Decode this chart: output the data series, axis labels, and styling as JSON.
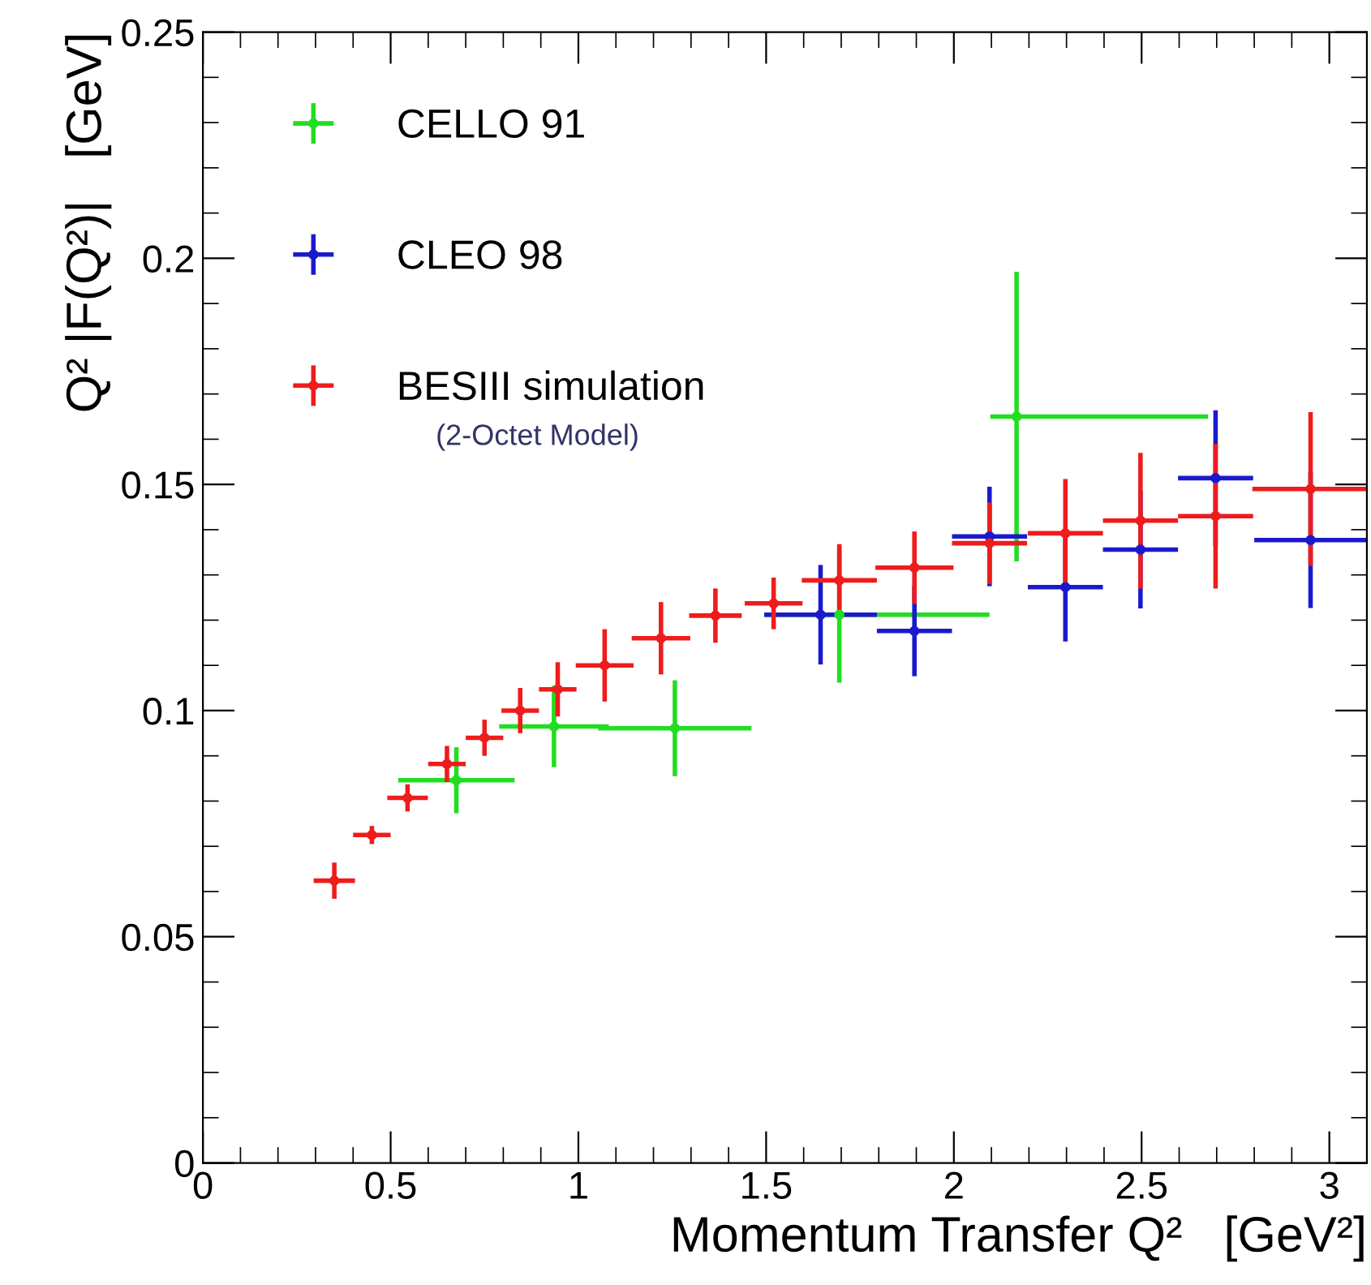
{
  "chart_data": {
    "type": "scatter",
    "xlabel": "Momentum Transfer Q²   [GeV²]",
    "ylabel": "Q² |F(Q²)|   [GeV]",
    "xlim": [
      0,
      3.1
    ],
    "ylim": [
      0,
      0.25
    ],
    "xticks": [
      0,
      0.5,
      1,
      1.5,
      2,
      2.5,
      3
    ],
    "yticks": [
      0,
      0.05,
      0.1,
      0.15,
      0.2,
      0.25
    ],
    "marker": "circle",
    "grid": false,
    "legend": "top left",
    "annotations": [
      "(2-Octet Model)"
    ],
    "series": [
      {
        "name": "CELLO 91",
        "color": "#22dd22",
        "x": [
          0.675,
          0.935,
          1.257,
          1.695,
          2.167
        ],
        "values": [
          0.0846,
          0.0965,
          0.0961,
          0.1212,
          0.165
        ],
        "errors": [
          0.0073,
          0.009,
          0.0106,
          0.015,
          0.032
        ],
        "xerrors": [
          0.155,
          0.146,
          0.204,
          [
            1.495,
            2.095
          ],
          [
            2.097,
            2.677
          ]
        ]
      },
      {
        "name": "CLEO 98",
        "color": "#1a1acc",
        "x": [
          1.645,
          1.895,
          2.095,
          2.297,
          2.497,
          2.697,
          2.95
        ],
        "values": [
          0.1212,
          0.1176,
          0.1385,
          0.1273,
          0.1356,
          0.1514,
          0.1377
        ],
        "errors": [
          0.011,
          0.01,
          0.011,
          0.012,
          0.013,
          0.015,
          0.015
        ],
        "xerrors": [
          0.15,
          0.1,
          0.1,
          0.1,
          0.1,
          0.1,
          0.15
        ]
      },
      {
        "name": "BESIII simulation",
        "color": "#ee1c1c",
        "x": [
          0.35,
          0.45,
          0.545,
          0.65,
          0.75,
          0.845,
          0.945,
          1.07,
          1.22,
          1.365,
          1.52,
          1.695,
          1.895,
          2.095,
          2.297,
          2.497,
          2.697,
          2.95
        ],
        "values": [
          0.0624,
          0.0725,
          0.0807,
          0.0882,
          0.094,
          0.1,
          0.1047,
          0.11,
          0.116,
          0.121,
          0.1237,
          0.1288,
          0.1316,
          0.137,
          0.1392,
          0.142,
          0.143,
          0.149
        ],
        "errors": [
          0.004,
          0.002,
          0.003,
          0.004,
          0.004,
          0.005,
          0.006,
          0.008,
          0.008,
          0.006,
          0.0057,
          0.008,
          0.008,
          0.009,
          0.012,
          0.015,
          0.016,
          0.017
        ],
        "xerrors": [
          0.055,
          0.05,
          0.054,
          0.05,
          0.05,
          0.05,
          0.05,
          0.077,
          0.078,
          0.07,
          0.077,
          0.1,
          0.104,
          0.1,
          0.1,
          0.1,
          0.1,
          0.155
        ]
      }
    ]
  }
}
